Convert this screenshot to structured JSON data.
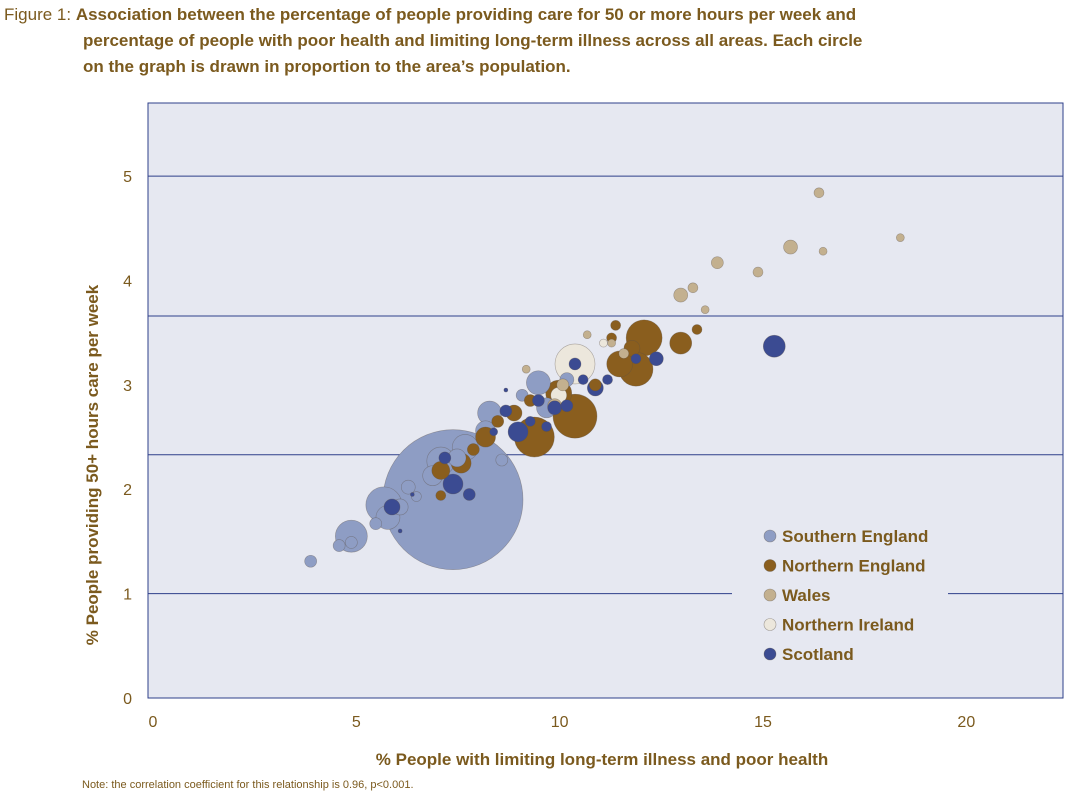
{
  "figure": {
    "label": "Figure 1:",
    "caption_line1": "Association between the percentage of people providing care for 50 or more hours per week and",
    "caption_line2": "percentage of people with poor health and limiting long-term illness across all areas.  Each circle",
    "caption_line3": "on the graph is drawn in proportion to the area’s population."
  },
  "note": "Note: the correlation coefficient for this relationship is 0.96, p<0.001.",
  "colors": {
    "plot_background": "#e6e8f1",
    "gridline": "#2e3f8a",
    "text": "#7b5a1e",
    "Southern England": "#8e9dc4",
    "Northern England": "#8a5e1e",
    "Wales": "#c3b08f",
    "Northern Ireland": "#ece7dc",
    "Scotland": "#3b4b92"
  },
  "chart_data": {
    "type": "scatter",
    "subtype": "bubble",
    "xlabel": "% People with limiting long-term illness and poor health",
    "ylabel": "% People providing 50+ hours care per week",
    "xlim": [
      0,
      22.5
    ],
    "ylim": [
      0,
      5.7
    ],
    "xticks": [
      0,
      5,
      10,
      15,
      20
    ],
    "yticks": [
      0,
      1,
      2,
      3,
      4,
      5
    ],
    "gridlines_y": [
      1,
      2.33,
      3.66,
      5
    ],
    "grid": "horizontal lines",
    "legend_position": "lower-right",
    "legend": [
      "Southern England",
      "Northern England",
      "Wales",
      "Northern Ireland",
      "Scotland"
    ],
    "series": [
      {
        "name": "Southern England",
        "points": [
          [
            7.5,
            1.9,
            70
          ],
          [
            5.0,
            1.55,
            16
          ],
          [
            5.8,
            1.85,
            18
          ],
          [
            5.9,
            1.73,
            12
          ],
          [
            4.0,
            1.31,
            6
          ],
          [
            4.7,
            1.46,
            6
          ],
          [
            5.6,
            1.67,
            6
          ],
          [
            6.2,
            1.83,
            8
          ],
          [
            7.2,
            2.27,
            14
          ],
          [
            7.8,
            2.4,
            13
          ],
          [
            8.3,
            2.56,
            10
          ],
          [
            9.6,
            3.02,
            12
          ],
          [
            8.4,
            2.73,
            12
          ],
          [
            9.8,
            2.78,
            10
          ],
          [
            7.0,
            2.13,
            10
          ],
          [
            7.6,
            2.3,
            9
          ],
          [
            8.7,
            2.28,
            6
          ],
          [
            6.6,
            1.93,
            5
          ],
          [
            9.2,
            2.9,
            6
          ],
          [
            10.3,
            3.05,
            7
          ],
          [
            5.0,
            1.49,
            6
          ],
          [
            6.4,
            2.02,
            7
          ]
        ]
      },
      {
        "name": "Northern England",
        "points": [
          [
            10.5,
            2.7,
            22
          ],
          [
            9.5,
            2.5,
            20
          ],
          [
            12.2,
            3.45,
            18
          ],
          [
            12.0,
            3.15,
            17
          ],
          [
            11.6,
            3.2,
            13
          ],
          [
            10.1,
            2.92,
            13
          ],
          [
            13.1,
            3.4,
            11
          ],
          [
            8.3,
            2.5,
            10
          ],
          [
            7.7,
            2.25,
            10
          ],
          [
            7.2,
            2.18,
            9
          ],
          [
            9.0,
            2.73,
            8
          ],
          [
            11.9,
            3.35,
            8
          ],
          [
            8.0,
            2.38,
            6
          ],
          [
            8.6,
            2.65,
            6
          ],
          [
            13.5,
            3.53,
            5
          ],
          [
            11.0,
            3.0,
            6
          ],
          [
            11.4,
            3.45,
            5
          ],
          [
            7.2,
            1.94,
            5
          ],
          [
            11.5,
            3.57,
            5
          ],
          [
            9.4,
            2.85,
            6
          ]
        ]
      },
      {
        "name": "Wales",
        "points": [
          [
            16.5,
            4.84,
            5
          ],
          [
            15.8,
            4.32,
            7
          ],
          [
            16.6,
            4.28,
            4
          ],
          [
            18.5,
            4.41,
            4
          ],
          [
            14.0,
            4.17,
            6
          ],
          [
            15.0,
            4.08,
            5
          ],
          [
            13.1,
            3.86,
            7
          ],
          [
            13.4,
            3.93,
            5
          ],
          [
            13.7,
            3.72,
            4
          ],
          [
            11.7,
            3.3,
            5
          ],
          [
            10.0,
            2.8,
            7
          ],
          [
            10.2,
            3.0,
            6
          ],
          [
            9.3,
            3.15,
            4
          ],
          [
            11.4,
            3.4,
            4
          ],
          [
            10.8,
            3.48,
            4
          ]
        ]
      },
      {
        "name": "Northern Ireland",
        "points": [
          [
            10.5,
            3.2,
            20
          ],
          [
            10.1,
            2.9,
            8
          ],
          [
            11.2,
            3.4,
            4
          ]
        ]
      },
      {
        "name": "Scotland",
        "points": [
          [
            15.4,
            3.37,
            11
          ],
          [
            9.1,
            2.55,
            10
          ],
          [
            7.5,
            2.05,
            10
          ],
          [
            6.0,
            1.83,
            8
          ],
          [
            11.0,
            2.97,
            8
          ],
          [
            12.5,
            3.25,
            7
          ],
          [
            10.0,
            2.78,
            7
          ],
          [
            10.3,
            2.8,
            6
          ],
          [
            10.5,
            3.2,
            6
          ],
          [
            8.8,
            2.75,
            6
          ],
          [
            9.6,
            2.85,
            6
          ],
          [
            10.7,
            3.05,
            5
          ],
          [
            9.4,
            2.65,
            5
          ],
          [
            7.3,
            2.3,
            6
          ],
          [
            12.0,
            3.25,
            5
          ],
          [
            7.9,
            1.95,
            6
          ],
          [
            11.3,
            3.05,
            5
          ],
          [
            8.5,
            2.55,
            4
          ],
          [
            9.8,
            2.6,
            5
          ],
          [
            6.2,
            1.6,
            2
          ],
          [
            6.5,
            1.95,
            2
          ],
          [
            8.8,
            2.95,
            2
          ]
        ]
      }
    ]
  }
}
